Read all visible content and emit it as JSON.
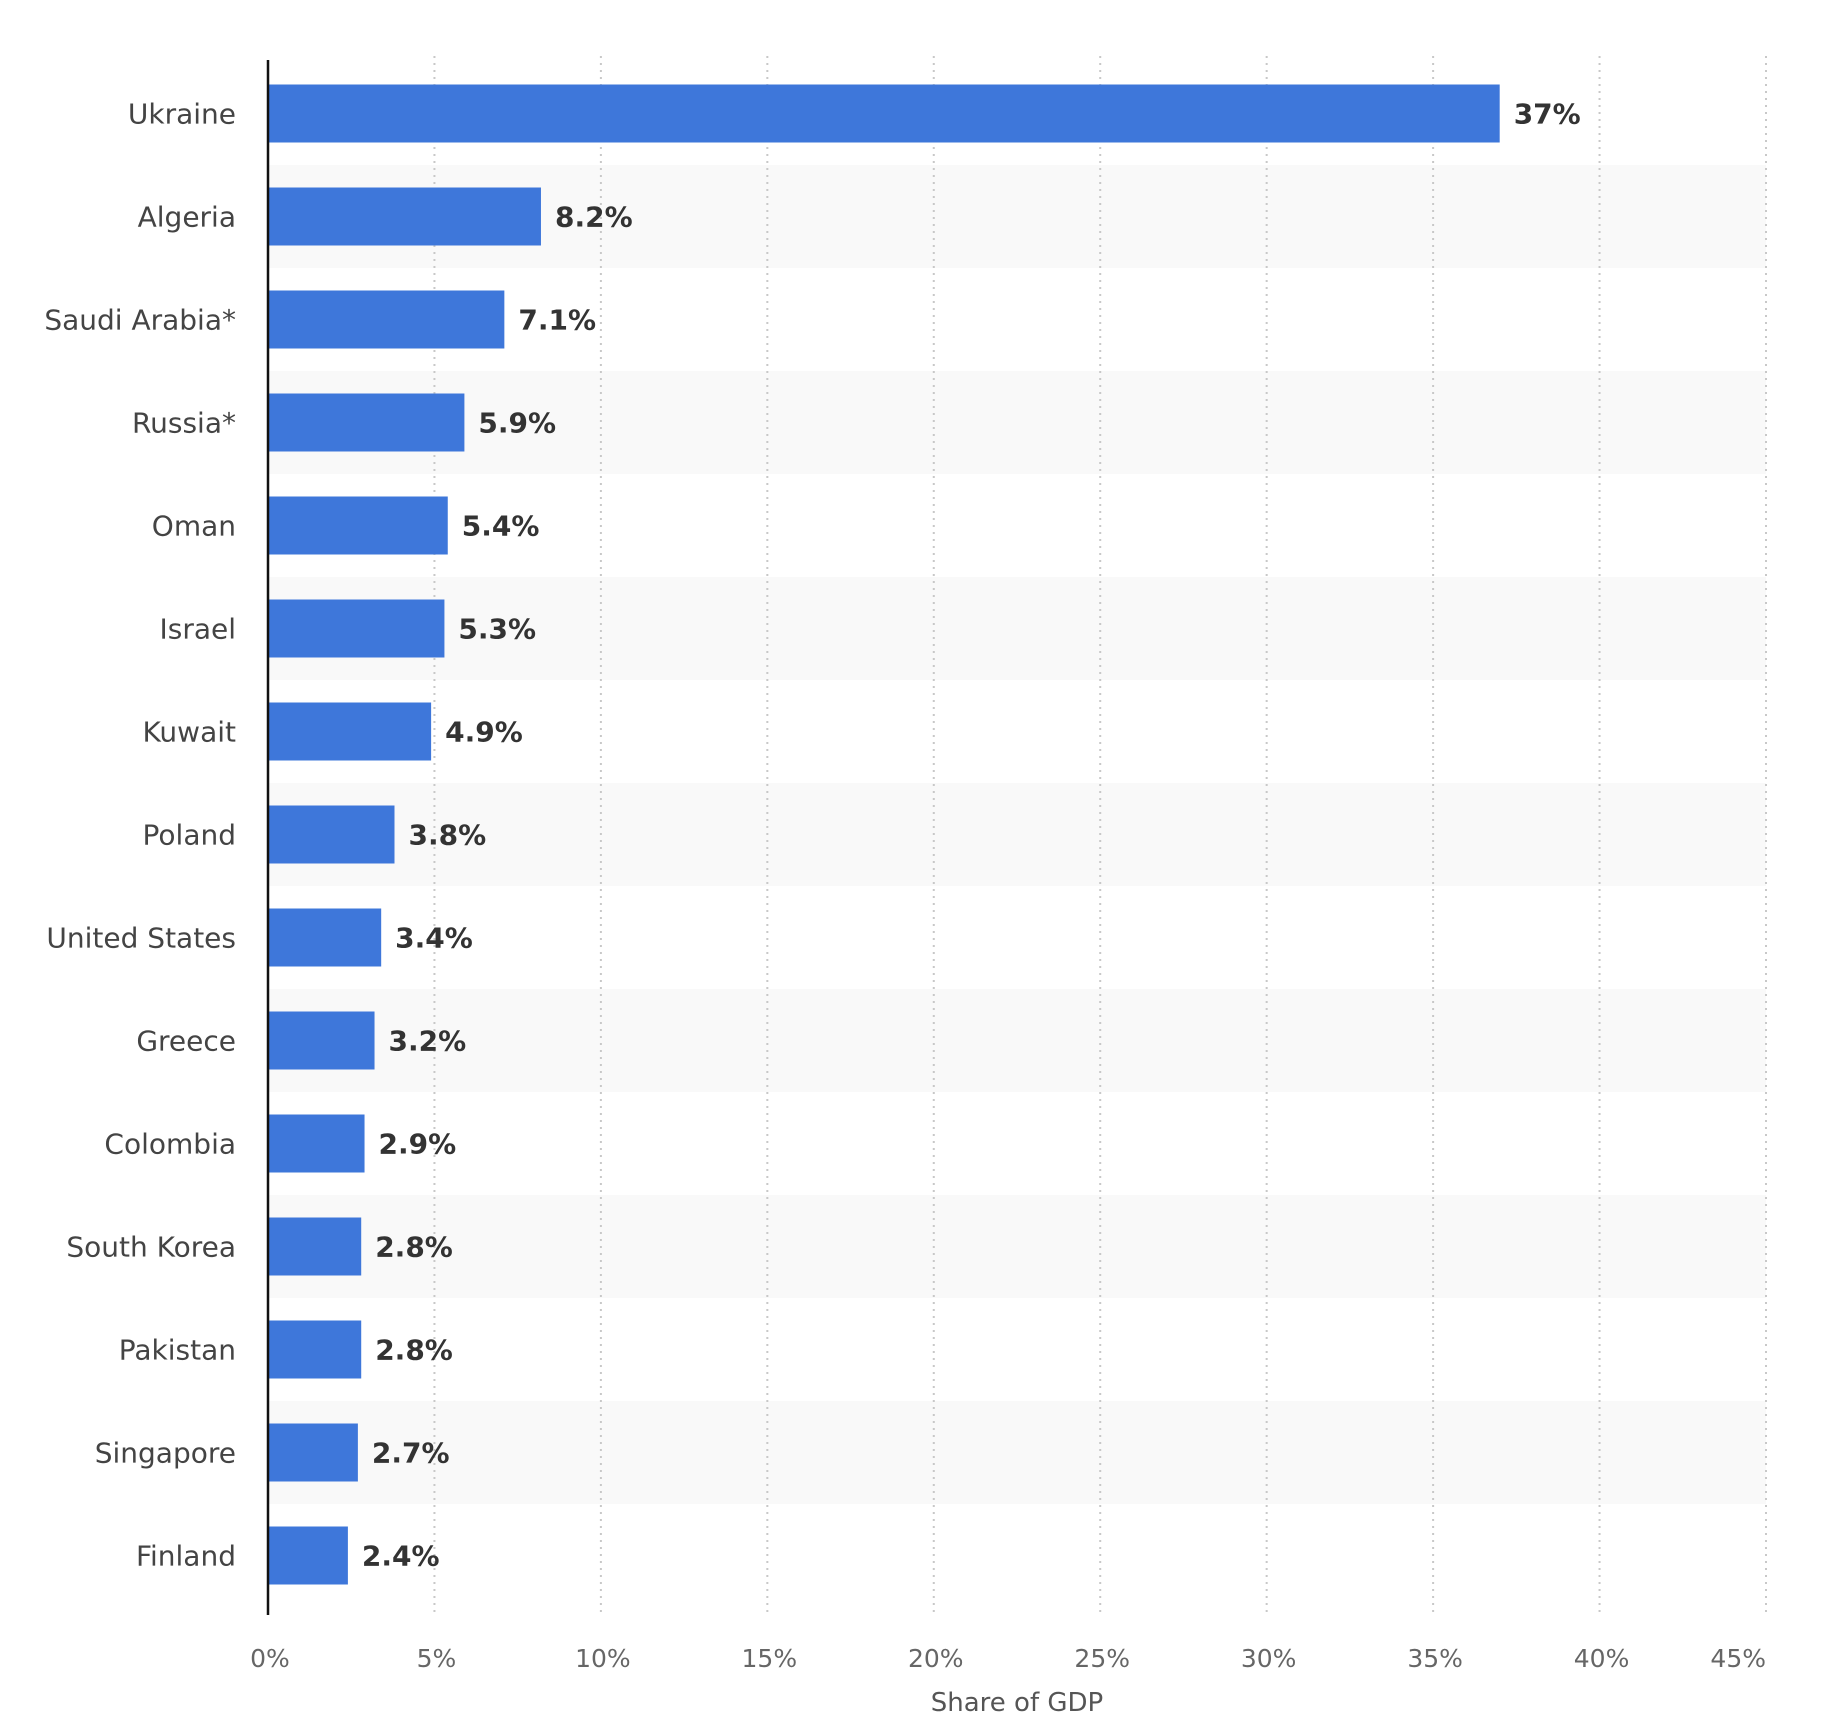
{
  "chart_data": {
    "type": "bar",
    "orientation": "horizontal",
    "categories": [
      "Ukraine",
      "Algeria",
      "Saudi Arabia*",
      "Russia*",
      "Oman",
      "Israel",
      "Kuwait",
      "Poland",
      "United States",
      "Greece",
      "Colombia",
      "South Korea",
      "Pakistan",
      "Singapore",
      "Finland"
    ],
    "values": [
      37,
      8.2,
      7.1,
      5.9,
      5.4,
      5.3,
      4.9,
      3.8,
      3.4,
      3.2,
      2.9,
      2.8,
      2.8,
      2.7,
      2.4
    ],
    "value_labels": [
      "37%",
      "8.2%",
      "7.1%",
      "5.9%",
      "5.4%",
      "5.3%",
      "4.9%",
      "3.8%",
      "3.4%",
      "3.2%",
      "2.9%",
      "2.8%",
      "2.8%",
      "2.7%",
      "2.4%"
    ],
    "xlabel": "Share of GDP",
    "ylabel": "",
    "xlim": [
      0,
      45
    ],
    "x_ticks": [
      0,
      5,
      10,
      15,
      20,
      25,
      30,
      35,
      40,
      45
    ],
    "x_tick_labels": [
      "0%",
      "5%",
      "10%",
      "15%",
      "20%",
      "25%",
      "30%",
      "35%",
      "40%",
      "45%"
    ],
    "grid": "vertical-dotted",
    "legend": "none",
    "colors": {
      "bar": "#3e77da",
      "band": "#f9f9f9",
      "grid": "#c8c8c8",
      "axis": "#111111"
    }
  }
}
